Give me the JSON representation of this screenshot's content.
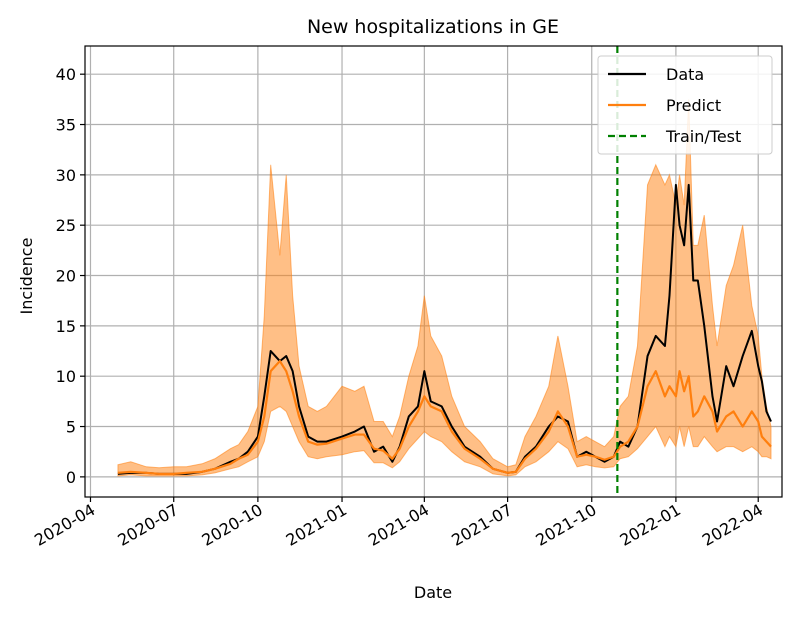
{
  "chart_data": {
    "type": "line",
    "title": "New hospitalizations in GE",
    "xlabel": "Date",
    "ylabel": "Incidence",
    "x_ticks": [
      "2020-04",
      "2020-07",
      "2020-10",
      "2021-01",
      "2021-04",
      "2021-07",
      "2021-10",
      "2022-01",
      "2022-04"
    ],
    "y_ticks": [
      0,
      5,
      10,
      15,
      20,
      25,
      30,
      35,
      40
    ],
    "xlim": [
      "2020-03-26",
      "2022-04-27"
    ],
    "ylim": [
      -2.0,
      42.8
    ],
    "grid": true,
    "legend_position": "top-right",
    "train_test_split": "2021-10-29",
    "series": [
      {
        "name": "Data",
        "color": "#000000",
        "style": "solid",
        "points": [
          [
            "2020-05-01",
            0.3
          ],
          [
            "2020-05-15",
            0.4
          ],
          [
            "2020-06-01",
            0.4
          ],
          [
            "2020-06-15",
            0.3
          ],
          [
            "2020-07-01",
            0.3
          ],
          [
            "2020-07-15",
            0.3
          ],
          [
            "2020-08-01",
            0.5
          ],
          [
            "2020-08-15",
            0.8
          ],
          [
            "2020-09-01",
            1.5
          ],
          [
            "2020-09-10",
            1.8
          ],
          [
            "2020-09-20",
            2.5
          ],
          [
            "2020-10-01",
            4.0
          ],
          [
            "2020-10-08",
            8.0
          ],
          [
            "2020-10-15",
            12.5
          ],
          [
            "2020-10-25",
            11.5
          ],
          [
            "2020-11-01",
            12.0
          ],
          [
            "2020-11-08",
            10.5
          ],
          [
            "2020-11-15",
            7.0
          ],
          [
            "2020-11-25",
            4.0
          ],
          [
            "2020-12-05",
            3.5
          ],
          [
            "2020-12-15",
            3.5
          ],
          [
            "2021-01-01",
            4.0
          ],
          [
            "2021-01-15",
            4.5
          ],
          [
            "2021-01-25",
            5.0
          ],
          [
            "2021-02-05",
            2.5
          ],
          [
            "2021-02-15",
            3.0
          ],
          [
            "2021-02-25",
            1.5
          ],
          [
            "2021-03-05",
            3.0
          ],
          [
            "2021-03-15",
            6.0
          ],
          [
            "2021-03-25",
            7.0
          ],
          [
            "2021-04-01",
            10.5
          ],
          [
            "2021-04-08",
            7.5
          ],
          [
            "2021-04-20",
            7.0
          ],
          [
            "2021-05-01",
            5.0
          ],
          [
            "2021-05-15",
            3.0
          ],
          [
            "2021-06-01",
            2.0
          ],
          [
            "2021-06-15",
            0.8
          ],
          [
            "2021-07-01",
            0.4
          ],
          [
            "2021-07-10",
            0.5
          ],
          [
            "2021-07-20",
            2.0
          ],
          [
            "2021-08-01",
            3.0
          ],
          [
            "2021-08-15",
            5.0
          ],
          [
            "2021-08-25",
            6.0
          ],
          [
            "2021-09-05",
            5.5
          ],
          [
            "2021-09-15",
            2.0
          ],
          [
            "2021-09-25",
            2.5
          ],
          [
            "2021-10-05",
            2.0
          ],
          [
            "2021-10-15",
            1.5
          ],
          [
            "2021-10-25",
            2.0
          ],
          [
            "2021-11-01",
            3.5
          ],
          [
            "2021-11-10",
            3.0
          ],
          [
            "2021-11-20",
            5.0
          ],
          [
            "2021-12-01",
            12.0
          ],
          [
            "2021-12-10",
            14.0
          ],
          [
            "2021-12-20",
            13.0
          ],
          [
            "2021-12-25",
            18.0
          ],
          [
            "2022-01-01",
            29.0
          ],
          [
            "2022-01-05",
            25.0
          ],
          [
            "2022-01-10",
            23.0
          ],
          [
            "2022-01-15",
            29.0
          ],
          [
            "2022-01-20",
            19.5
          ],
          [
            "2022-01-25",
            19.5
          ],
          [
            "2022-02-01",
            15.0
          ],
          [
            "2022-02-10",
            8.0
          ],
          [
            "2022-02-15",
            5.5
          ],
          [
            "2022-02-25",
            11.0
          ],
          [
            "2022-03-05",
            9.0
          ],
          [
            "2022-03-15",
            12.0
          ],
          [
            "2022-03-25",
            14.5
          ],
          [
            "2022-04-01",
            11.0
          ],
          [
            "2022-04-05",
            9.5
          ],
          [
            "2022-04-10",
            6.5
          ],
          [
            "2022-04-15",
            5.5
          ]
        ]
      },
      {
        "name": "Predict",
        "color": "#ff7f0e",
        "style": "solid",
        "points": [
          [
            "2020-05-01",
            0.4
          ],
          [
            "2020-05-15",
            0.5
          ],
          [
            "2020-06-01",
            0.4
          ],
          [
            "2020-06-15",
            0.3
          ],
          [
            "2020-07-01",
            0.3
          ],
          [
            "2020-07-15",
            0.4
          ],
          [
            "2020-08-01",
            0.5
          ],
          [
            "2020-08-15",
            0.8
          ],
          [
            "2020-09-01",
            1.3
          ],
          [
            "2020-09-10",
            1.8
          ],
          [
            "2020-09-20",
            2.2
          ],
          [
            "2020-10-01",
            3.5
          ],
          [
            "2020-10-08",
            6.0
          ],
          [
            "2020-10-15",
            10.5
          ],
          [
            "2020-10-25",
            11.5
          ],
          [
            "2020-11-01",
            10.5
          ],
          [
            "2020-11-08",
            8.5
          ],
          [
            "2020-11-15",
            6.0
          ],
          [
            "2020-11-25",
            3.5
          ],
          [
            "2020-12-05",
            3.2
          ],
          [
            "2020-12-15",
            3.3
          ],
          [
            "2021-01-01",
            3.8
          ],
          [
            "2021-01-15",
            4.2
          ],
          [
            "2021-01-25",
            4.2
          ],
          [
            "2021-02-05",
            2.8
          ],
          [
            "2021-02-15",
            2.6
          ],
          [
            "2021-02-25",
            1.8
          ],
          [
            "2021-03-05",
            2.8
          ],
          [
            "2021-03-15",
            5.0
          ],
          [
            "2021-03-25",
            6.5
          ],
          [
            "2021-04-01",
            8.0
          ],
          [
            "2021-04-08",
            7.0
          ],
          [
            "2021-04-20",
            6.5
          ],
          [
            "2021-05-01",
            4.5
          ],
          [
            "2021-05-15",
            2.8
          ],
          [
            "2021-06-01",
            1.8
          ],
          [
            "2021-06-15",
            0.8
          ],
          [
            "2021-07-01",
            0.4
          ],
          [
            "2021-07-10",
            0.5
          ],
          [
            "2021-07-20",
            1.8
          ],
          [
            "2021-08-01",
            2.8
          ],
          [
            "2021-08-15",
            4.5
          ],
          [
            "2021-08-25",
            6.5
          ],
          [
            "2021-09-05",
            5.0
          ],
          [
            "2021-09-15",
            2.0
          ],
          [
            "2021-09-25",
            2.2
          ],
          [
            "2021-10-05",
            2.0
          ],
          [
            "2021-10-15",
            1.7
          ],
          [
            "2021-10-25",
            2.0
          ],
          [
            "2021-11-01",
            3.0
          ],
          [
            "2021-11-10",
            3.5
          ],
          [
            "2021-11-20",
            5.0
          ],
          [
            "2021-12-01",
            9.0
          ],
          [
            "2021-12-10",
            10.5
          ],
          [
            "2021-12-20",
            8.0
          ],
          [
            "2021-12-25",
            9.0
          ],
          [
            "2022-01-01",
            8.0
          ],
          [
            "2022-01-05",
            10.5
          ],
          [
            "2022-01-10",
            8.5
          ],
          [
            "2022-01-15",
            10.0
          ],
          [
            "2022-01-20",
            6.0
          ],
          [
            "2022-01-25",
            6.5
          ],
          [
            "2022-02-01",
            8.0
          ],
          [
            "2022-02-10",
            6.5
          ],
          [
            "2022-02-15",
            4.5
          ],
          [
            "2022-02-25",
            6.0
          ],
          [
            "2022-03-05",
            6.5
          ],
          [
            "2022-03-15",
            5.0
          ],
          [
            "2022-03-25",
            6.5
          ],
          [
            "2022-04-01",
            5.5
          ],
          [
            "2022-04-05",
            4.0
          ],
          [
            "2022-04-10",
            3.5
          ],
          [
            "2022-04-15",
            3.0
          ]
        ]
      },
      {
        "name": "Train/Test",
        "color": "#008000",
        "style": "dashed"
      }
    ],
    "band": {
      "color": "#ff7f0e",
      "points": [
        [
          "2020-05-01",
          0.1,
          1.2
        ],
        [
          "2020-05-15",
          0.2,
          1.5
        ],
        [
          "2020-06-01",
          0.1,
          1.0
        ],
        [
          "2020-06-15",
          0.1,
          0.9
        ],
        [
          "2020-07-01",
          0.1,
          1.0
        ],
        [
          "2020-07-15",
          0.1,
          1.0
        ],
        [
          "2020-08-01",
          0.2,
          1.3
        ],
        [
          "2020-08-15",
          0.4,
          1.8
        ],
        [
          "2020-09-01",
          0.8,
          2.8
        ],
        [
          "2020-09-10",
          1.0,
          3.2
        ],
        [
          "2020-09-20",
          1.5,
          4.5
        ],
        [
          "2020-10-01",
          2.0,
          7.0
        ],
        [
          "2020-10-08",
          3.5,
          16.0
        ],
        [
          "2020-10-15",
          6.5,
          31.0
        ],
        [
          "2020-10-25",
          7.0,
          22.0
        ],
        [
          "2020-11-01",
          6.5,
          30.0
        ],
        [
          "2020-11-08",
          5.0,
          18.0
        ],
        [
          "2020-11-15",
          3.5,
          11.0
        ],
        [
          "2020-11-25",
          2.0,
          7.0
        ],
        [
          "2020-12-05",
          1.8,
          6.5
        ],
        [
          "2020-12-15",
          2.0,
          7.0
        ],
        [
          "2021-01-01",
          2.2,
          9.0
        ],
        [
          "2021-01-15",
          2.5,
          8.5
        ],
        [
          "2021-01-25",
          2.6,
          9.0
        ],
        [
          "2021-02-05",
          1.4,
          5.5
        ],
        [
          "2021-02-15",
          1.4,
          5.5
        ],
        [
          "2021-02-25",
          0.9,
          4.0
        ],
        [
          "2021-03-05",
          1.5,
          6.0
        ],
        [
          "2021-03-15",
          2.8,
          10.0
        ],
        [
          "2021-03-25",
          3.8,
          13.0
        ],
        [
          "2021-04-01",
          4.5,
          18.0
        ],
        [
          "2021-04-08",
          4.0,
          14.0
        ],
        [
          "2021-04-20",
          3.5,
          12.0
        ],
        [
          "2021-05-01",
          2.5,
          8.0
        ],
        [
          "2021-05-15",
          1.5,
          5.0
        ],
        [
          "2021-06-01",
          1.0,
          3.5
        ],
        [
          "2021-06-15",
          0.3,
          1.8
        ],
        [
          "2021-07-01",
          0.1,
          1.0
        ],
        [
          "2021-07-10",
          0.2,
          1.2
        ],
        [
          "2021-07-20",
          1.0,
          4.0
        ],
        [
          "2021-08-01",
          1.5,
          6.0
        ],
        [
          "2021-08-15",
          2.5,
          9.0
        ],
        [
          "2021-08-25",
          3.5,
          14.0
        ],
        [
          "2021-09-05",
          2.8,
          9.0
        ],
        [
          "2021-09-15",
          1.0,
          3.5
        ],
        [
          "2021-09-25",
          1.2,
          4.0
        ],
        [
          "2021-10-05",
          1.0,
          3.5
        ],
        [
          "2021-10-15",
          0.9,
          3.0
        ],
        [
          "2021-10-25",
          1.0,
          4.0
        ],
        [
          "2021-11-01",
          1.8,
          7.0
        ],
        [
          "2021-11-10",
          2.0,
          8.0
        ],
        [
          "2021-11-20",
          2.8,
          13.0
        ],
        [
          "2021-12-01",
          4.0,
          29.0
        ],
        [
          "2021-12-10",
          5.0,
          31.0
        ],
        [
          "2021-12-20",
          3.0,
          29.0
        ],
        [
          "2021-12-25",
          4.0,
          30.0
        ],
        [
          "2022-01-01",
          3.0,
          27.0
        ],
        [
          "2022-01-05",
          5.0,
          30.0
        ],
        [
          "2022-01-10",
          3.0,
          27.0
        ],
        [
          "2022-01-15",
          5.0,
          37.5
        ],
        [
          "2022-01-20",
          3.0,
          23.0
        ],
        [
          "2022-01-25",
          3.0,
          23.0
        ],
        [
          "2022-02-01",
          4.0,
          26.0
        ],
        [
          "2022-02-10",
          3.0,
          17.0
        ],
        [
          "2022-02-15",
          2.5,
          13.0
        ],
        [
          "2022-02-25",
          3.0,
          19.0
        ],
        [
          "2022-03-05",
          3.0,
          21.0
        ],
        [
          "2022-03-15",
          2.5,
          25.0
        ],
        [
          "2022-03-25",
          3.0,
          17.0
        ],
        [
          "2022-04-01",
          2.5,
          14.0
        ],
        [
          "2022-04-05",
          2.0,
          10.0
        ],
        [
          "2022-04-10",
          2.0,
          7.0
        ],
        [
          "2022-04-15",
          1.8,
          5.0
        ]
      ]
    }
  }
}
